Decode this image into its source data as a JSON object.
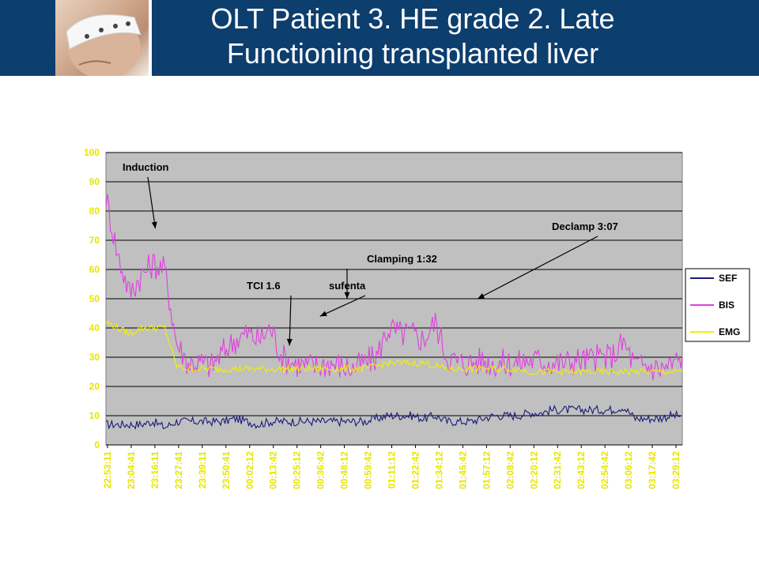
{
  "slide": {
    "title_line1": "OLT Patient 3. HE  grade 2. Late",
    "title_line2": "Functioning transplanted liver",
    "header_color": "#0c3e6e"
  },
  "chart_data": {
    "type": "line",
    "title": "",
    "xlabel": "",
    "ylabel": "",
    "ylim": [
      0,
      100
    ],
    "yticks": [
      0,
      10,
      20,
      30,
      40,
      50,
      60,
      70,
      80,
      90,
      100
    ],
    "grid": true,
    "legend_position": "right",
    "x_tick_labels": [
      "22:53:11",
      "23:04:41",
      "23:16:11",
      "23:27:41",
      "23:39:11",
      "23:50:41",
      "00:02:12",
      "00:13:42",
      "00:25:12",
      "00:36:42",
      "00:48:12",
      "00:59:42",
      "01:11:12",
      "01:22:42",
      "01:34:12",
      "01:45:42",
      "01:57:12",
      "02:08:42",
      "02:20:12",
      "02:31:42",
      "02:43:12",
      "02:54:42",
      "03:06:12",
      "03:17:42",
      "03:29:12"
    ],
    "series": [
      {
        "name": "SEF",
        "color": "#1a1a7a",
        "values": [
          7,
          7,
          7,
          7,
          8,
          6,
          8,
          8,
          8,
          8,
          8,
          9,
          8,
          7,
          8,
          8,
          8,
          8,
          8,
          8,
          8,
          8,
          8,
          9,
          10,
          10,
          10,
          9,
          10,
          8,
          8,
          8,
          9,
          10,
          10,
          10,
          11,
          11,
          12,
          12,
          12,
          12,
          12,
          12,
          13,
          9,
          9,
          9,
          10,
          10
        ]
      },
      {
        "name": "BIS",
        "color": "#e040e0",
        "values": [
          85,
          65,
          52,
          58,
          62,
          60,
          35,
          28,
          28,
          27,
          32,
          36,
          38,
          36,
          40,
          30,
          28,
          27,
          27,
          28,
          27,
          26,
          28,
          30,
          40,
          38,
          38,
          36,
          42,
          30,
          28,
          28,
          29,
          28,
          28,
          28,
          29,
          29,
          28,
          28,
          29,
          29,
          30,
          30,
          35,
          27,
          27,
          26,
          27,
          30
        ]
      },
      {
        "name": "EMG",
        "color": "#f0f000",
        "values": [
          42,
          40,
          38,
          40,
          40,
          40,
          27,
          26,
          26,
          26,
          26,
          26,
          26,
          26,
          26,
          26,
          26,
          26,
          26,
          26,
          26,
          26,
          26,
          27,
          28,
          28,
          28,
          28,
          27,
          26,
          26,
          26,
          26,
          26,
          26,
          26,
          25,
          25,
          25,
          25,
          25,
          25,
          25,
          25,
          25,
          25,
          25,
          25,
          25,
          25
        ]
      }
    ],
    "annotations": [
      {
        "text": "Induction",
        "arrow_to_x": 4.2,
        "arrow_to_y": 74
      },
      {
        "text": "TCI 1.6",
        "arrow_to_x": 15.6,
        "arrow_to_y": 34
      },
      {
        "text": "sufenta",
        "arrow_to_x": 18.2,
        "arrow_to_y": 44
      },
      {
        "text": "Clamping 1:32",
        "arrow_to_x": 20.5,
        "arrow_to_y": 50
      },
      {
        "text": "Declamp 3:07",
        "arrow_to_x": 31.6,
        "arrow_to_y": 50
      }
    ]
  }
}
